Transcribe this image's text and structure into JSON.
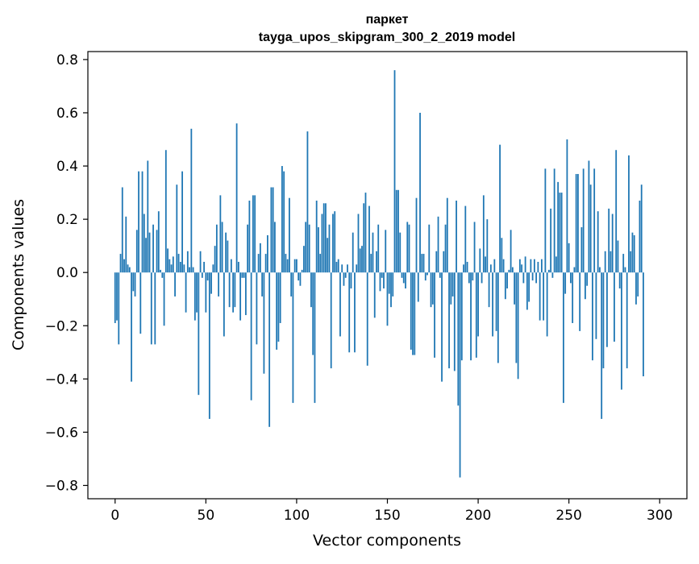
{
  "chart_data": {
    "type": "bar",
    "title_line1": "паркет",
    "title_line2": "tayga_upos_skipgram_300_2_2019 model",
    "xlabel": "Vector components",
    "ylabel": "Components values",
    "xlim": [
      -15,
      315
    ],
    "ylim": [
      -0.85,
      0.83
    ],
    "xticks": [
      0,
      50,
      100,
      150,
      200,
      250,
      300
    ],
    "yticks": [
      -0.8,
      -0.6,
      -0.4,
      -0.2,
      0.0,
      0.2,
      0.4,
      0.6,
      0.8
    ],
    "ytick_labels": [
      "−0.8",
      "−0.6",
      "−0.4",
      "−0.2",
      "0.0",
      "0.2",
      "0.4",
      "0.6",
      "0.8"
    ],
    "xtick_labels": [
      "0",
      "50",
      "100",
      "150",
      "200",
      "250",
      "300"
    ],
    "bar_color": "#1f77b4",
    "grid": false,
    "values": [
      -0.19,
      -0.18,
      -0.27,
      0.07,
      0.32,
      0.05,
      0.21,
      0.03,
      0.02,
      -0.41,
      -0.07,
      -0.09,
      0.16,
      0.38,
      -0.23,
      0.38,
      0.22,
      0.13,
      0.42,
      0.15,
      -0.27,
      0.18,
      -0.27,
      0.16,
      0.23,
      0.01,
      -0.02,
      -0.2,
      0.46,
      0.09,
      0.05,
      0.03,
      0.06,
      -0.09,
      0.33,
      0.07,
      0.04,
      0.38,
      0.03,
      -0.15,
      0.08,
      0.02,
      0.54,
      0.02,
      -0.18,
      -0.15,
      -0.46,
      0.08,
      -0.02,
      0.04,
      -0.15,
      -0.03,
      -0.55,
      -0.08,
      0.03,
      0.1,
      0.18,
      -0.09,
      0.29,
      0.19,
      -0.24,
      0.15,
      0.12,
      -0.13,
      0.05,
      -0.15,
      -0.13,
      0.56,
      0.04,
      -0.18,
      -0.02,
      -0.02,
      -0.16,
      0.18,
      0.27,
      -0.48,
      0.29,
      0.29,
      -0.27,
      0.07,
      0.11,
      -0.09,
      -0.38,
      0.07,
      0.14,
      -0.58,
      0.32,
      0.32,
      0.19,
      -0.29,
      -0.26,
      -0.19,
      0.4,
      0.38,
      0.07,
      0.05,
      0.28,
      -0.09,
      -0.49,
      0.05,
      0.05,
      -0.03,
      -0.05,
      0.01,
      0.1,
      0.19,
      0.53,
      0.18,
      -0.13,
      -0.31,
      -0.49,
      0.27,
      0.17,
      0.07,
      0.22,
      0.26,
      0.26,
      0.13,
      0.18,
      -0.36,
      0.22,
      0.23,
      0.04,
      0.05,
      -0.24,
      0.03,
      -0.05,
      -0.02,
      0.03,
      -0.3,
      -0.06,
      0.15,
      -0.3,
      0.03,
      0.22,
      0.09,
      0.1,
      0.26,
      0.3,
      -0.35,
      0.25,
      0.07,
      0.15,
      -0.17,
      0.08,
      0.18,
      -0.07,
      -0.02,
      -0.06,
      0.16,
      -0.2,
      -0.08,
      -0.13,
      -0.09,
      0.76,
      0.31,
      0.31,
      0.15,
      -0.02,
      -0.04,
      -0.06,
      0.19,
      0.18,
      -0.29,
      -0.31,
      -0.31,
      0.28,
      -0.11,
      0.6,
      0.07,
      0.07,
      -0.03,
      -0.01,
      0.18,
      -0.13,
      -0.12,
      -0.32,
      0.08,
      0.21,
      -0.02,
      -0.41,
      0.08,
      0.18,
      0.28,
      -0.36,
      -0.12,
      -0.09,
      -0.37,
      0.27,
      -0.5,
      -0.77,
      -0.33,
      0.03,
      0.25,
      0.04,
      -0.04,
      -0.33,
      -0.03,
      0.19,
      -0.32,
      -0.24,
      0.09,
      -0.04,
      0.29,
      0.06,
      0.2,
      -0.13,
      0.03,
      -0.24,
      0.05,
      -0.22,
      -0.34,
      0.48,
      0.13,
      0.05,
      -0.1,
      -0.06,
      0.01,
      0.16,
      0.02,
      -0.12,
      -0.34,
      -0.4,
      0.05,
      0.03,
      -0.04,
      0.06,
      -0.14,
      -0.11,
      0.05,
      -0.03,
      0.05,
      -0.04,
      0.04,
      -0.18,
      0.05,
      -0.18,
      0.39,
      -0.24,
      0.01,
      0.24,
      -0.02,
      0.39,
      0.06,
      0.34,
      0.3,
      0.3,
      -0.49,
      -0.08,
      0.5,
      0.11,
      -0.04,
      -0.19,
      0.02,
      0.37,
      0.37,
      -0.22,
      0.17,
      0.39,
      -0.1,
      -0.05,
      0.42,
      0.33,
      -0.33,
      0.39,
      -0.25,
      0.23,
      0.02,
      -0.55,
      -0.36,
      0.08,
      -0.28,
      0.24,
      0.08,
      0.22,
      -0.26,
      0.46,
      0.12,
      -0.06,
      -0.44,
      0.07,
      0.02,
      -0.36,
      0.44,
      0.08,
      0.15,
      0.14,
      -0.12,
      -0.09,
      0.27,
      0.33,
      -0.39
    ]
  }
}
